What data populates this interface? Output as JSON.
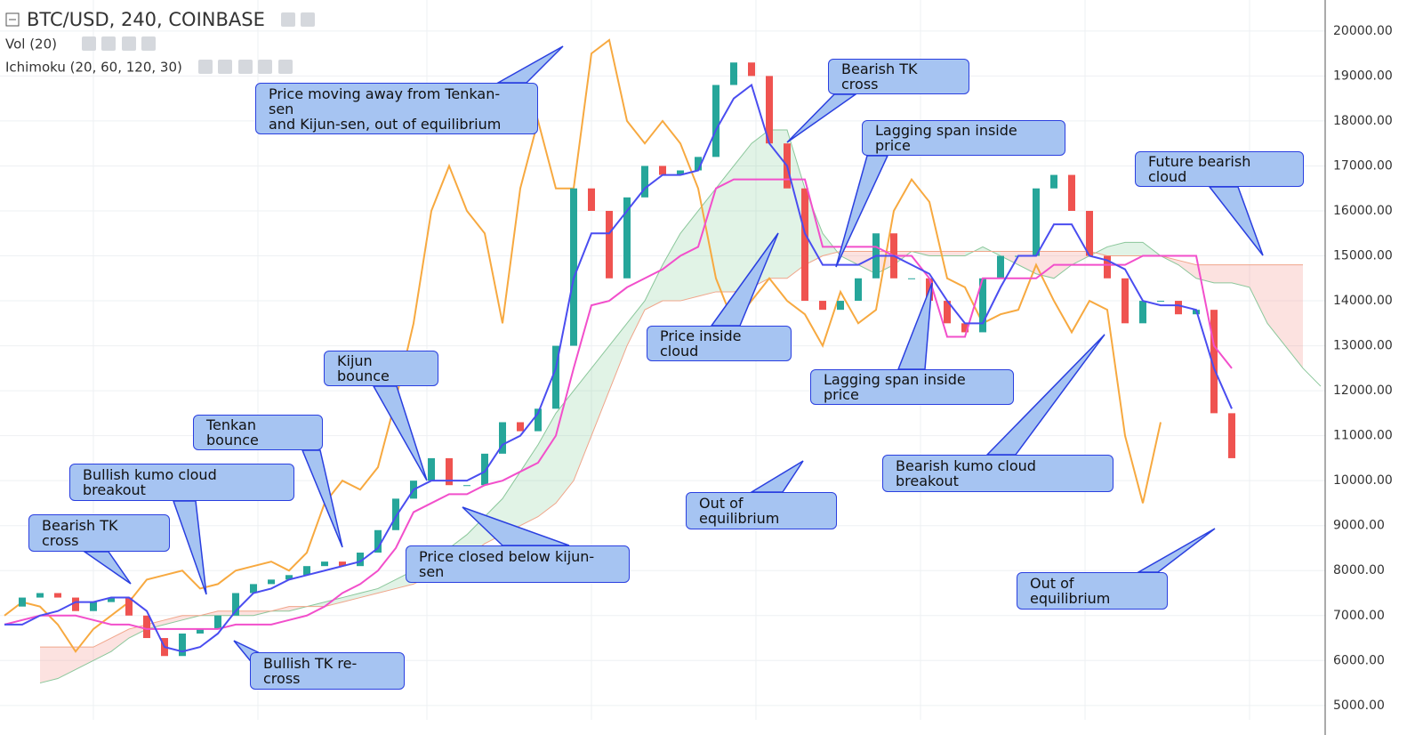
{
  "chart_data": {
    "type": "ichimoku",
    "title": "BTC/USD, 240, COINBASE",
    "indicators": [
      "Vol (20)",
      "Ichimoku (20, 60, 120, 30)"
    ],
    "ylim": [
      4680,
      20690
    ],
    "yticks": [
      {
        "value": 5000,
        "label": "5000.00"
      },
      {
        "value": 6000,
        "label": "6000.00"
      },
      {
        "value": 7000,
        "label": "7000.00"
      },
      {
        "value": 8000,
        "label": "8000.00"
      },
      {
        "value": 9000,
        "label": "9000.00"
      },
      {
        "value": 10000,
        "label": "10000.00"
      },
      {
        "value": 11000,
        "label": "11000.00"
      },
      {
        "value": 12000,
        "label": "12000.00"
      },
      {
        "value": 13000,
        "label": "13000.00"
      },
      {
        "value": 14000,
        "label": "14000.00"
      },
      {
        "value": 15000,
        "label": "15000.00"
      },
      {
        "value": 16000,
        "label": "16000.00"
      },
      {
        "value": 17000,
        "label": "17000.00"
      },
      {
        "value": 18000,
        "label": "18000.00"
      },
      {
        "value": 19000,
        "label": "19000.00"
      },
      {
        "value": 20000,
        "label": "20000.00"
      }
    ],
    "grid": true,
    "categories": [
      null,
      null,
      null,
      null,
      null,
      null,
      null,
      null,
      null,
      null,
      null,
      null,
      null,
      null,
      null,
      null,
      null,
      null,
      null,
      null,
      null,
      null,
      null,
      null,
      null,
      null,
      null,
      null,
      null,
      null,
      null,
      null,
      null,
      null,
      null,
      null,
      null,
      null,
      null,
      null,
      null,
      null,
      null,
      null,
      null,
      null,
      null,
      null,
      null,
      null,
      null,
      null,
      null,
      null,
      null,
      null,
      null,
      null,
      null,
      null,
      null,
      null,
      null,
      null,
      null,
      null,
      null,
      null,
      null,
      null,
      null,
      null,
      null,
      null,
      null
    ],
    "price": {
      "up_color": "#26a69a",
      "down_color": "#ef5350",
      "values": [
        7200,
        7400,
        7500,
        7400,
        7100,
        7300,
        7400,
        7000,
        6500,
        6100,
        6600,
        6700,
        7000,
        7500,
        7700,
        7800,
        7900,
        8100,
        8200,
        8100,
        8400,
        8900,
        9600,
        10000,
        10500,
        9900,
        9900,
        10600,
        11300,
        11100,
        11600,
        13000,
        16500,
        16000,
        14500,
        16300,
        17000,
        16800,
        16900,
        17200,
        18800,
        19300,
        19000,
        17500,
        16500,
        14000,
        13800,
        14000,
        14500,
        15500,
        14500,
        14500,
        14000,
        13500,
        13300,
        14500,
        15000,
        15000,
        16500,
        16800,
        16000,
        15000,
        14500,
        13500,
        14000,
        14000,
        13700,
        13800,
        11500,
        10500,
        null,
        null,
        null,
        null,
        null
      ]
    },
    "series": [
      {
        "color": "#4a4df0",
        "values": [
          6800,
          6800,
          7000,
          7100,
          7300,
          7300,
          7400,
          7400,
          7100,
          6300,
          6200,
          6300,
          6600,
          7100,
          7500,
          7600,
          7800,
          7900,
          8000,
          8100,
          8200,
          8500,
          9200,
          9800,
          10000,
          10000,
          10000,
          10200,
          10800,
          11000,
          11500,
          12500,
          14500,
          15500,
          15500,
          16000,
          16500,
          16800,
          16800,
          16900,
          17800,
          18500,
          18800,
          17500,
          17000,
          15500,
          14800,
          14800,
          14800,
          15000,
          15000,
          14800,
          14600,
          14000,
          13500,
          13500,
          14300,
          15000,
          15000,
          15700,
          15700,
          15000,
          14900,
          14700,
          14000,
          13900,
          13900,
          13800,
          12500,
          11600,
          null,
          null,
          null,
          null,
          null
        ]
      },
      {
        "color": "#f24fcb",
        "values": [
          6800,
          6900,
          7000,
          7000,
          7000,
          6900,
          6800,
          6800,
          6700,
          6700,
          6700,
          6700,
          6700,
          6800,
          6800,
          6800,
          6900,
          7000,
          7200,
          7500,
          7700,
          8000,
          8500,
          9300,
          9500,
          9700,
          9700,
          9900,
          10000,
          10200,
          10400,
          11000,
          12500,
          13900,
          14000,
          14300,
          14500,
          14700,
          15000,
          15200,
          16500,
          16700,
          16700,
          16700,
          16700,
          16700,
          15200,
          15200,
          15200,
          15200,
          15000,
          15000,
          14500,
          13200,
          13200,
          14500,
          14500,
          14500,
          14500,
          14800,
          14800,
          14800,
          14800,
          14800,
          15000,
          15000,
          15000,
          15000,
          13000,
          12500,
          null,
          null,
          null,
          null,
          null
        ]
      },
      {
        "color": "#f7a940",
        "values": [
          7000,
          7300,
          7200,
          6800,
          6200,
          6700,
          7000,
          7300,
          7800,
          7900,
          8000,
          7600,
          7700,
          8000,
          8100,
          8200,
          8000,
          8400,
          9500,
          10000,
          9800,
          10300,
          11800,
          13500,
          16000,
          17000,
          16000,
          15500,
          13500,
          16500,
          18000,
          16500,
          16500,
          19500,
          19800,
          18000,
          17500,
          18000,
          17500,
          16500,
          14500,
          13500,
          14000,
          14500,
          14000,
          13700,
          13000,
          14200,
          13500,
          13800,
          16000,
          16700,
          16200,
          14500,
          14300,
          13500,
          13700,
          13800,
          14800,
          14000,
          13300,
          14000,
          13800,
          11000,
          9500,
          11300,
          null,
          null,
          null,
          null,
          null,
          null,
          null,
          null,
          null
        ]
      },
      {
        "color": "#8bc79b",
        "values": [
          null,
          null,
          5500,
          5600,
          5800,
          6000,
          6200,
          6500,
          6700,
          6800,
          6900,
          7000,
          7000,
          7000,
          7000,
          7100,
          7100,
          7200,
          7300,
          7400,
          7500,
          7600,
          7800,
          8000,
          8200,
          8500,
          8800,
          9200,
          9600,
          10200,
          10800,
          11500,
          12000,
          12500,
          13000,
          13500,
          14000,
          14800,
          15500,
          16000,
          16500,
          17000,
          17500,
          17800,
          17800,
          16500,
          15500,
          15000,
          14800,
          14600,
          14800,
          15100,
          15000,
          15000,
          15000,
          15200,
          15000,
          14800,
          14600,
          14500,
          14800,
          15000,
          15200,
          15300,
          15300,
          15000,
          14800,
          14500,
          14400,
          14400,
          14300,
          13500,
          13000,
          12500,
          12100
        ]
      },
      {
        "color": "#f0a58a",
        "values": [
          null,
          null,
          6300,
          6300,
          6300,
          6300,
          6500,
          6700,
          6800,
          6900,
          7000,
          7000,
          7100,
          7100,
          7100,
          7100,
          7200,
          7200,
          7200,
          7300,
          7400,
          7500,
          7600,
          7700,
          7900,
          8100,
          8300,
          8600,
          8800,
          9000,
          9200,
          9500,
          10000,
          11000,
          12000,
          13000,
          13800,
          14000,
          14000,
          14100,
          14200,
          14200,
          14300,
          14500,
          14500,
          14800,
          15000,
          15100,
          15100,
          15100,
          15100,
          15100,
          15100,
          15100,
          15100,
          15100,
          15100,
          15100,
          15100,
          15100,
          15100,
          15100,
          15000,
          15000,
          15000,
          15000,
          14900,
          14800,
          14800,
          14800,
          14800,
          14800,
          14800,
          14800,
          null
        ]
      }
    ],
    "annotations": [
      "Price moving away from Tenkan-sen\nand Kijun-sen, out of equilibrium",
      "Bearish TK cross",
      "Lagging span inside price",
      "Future bearish cloud",
      "Price inside cloud",
      "Lagging span inside price",
      "Kijun bounce",
      "Tenkan bounce",
      "Bullish kumo cloud breakout",
      "Bearish TK cross",
      "Price closed below kijun-sen",
      "Out of equilibrium",
      "Bearish kumo cloud breakout",
      "Out of equilibrium",
      "Bullish TK re-cross"
    ]
  }
}
